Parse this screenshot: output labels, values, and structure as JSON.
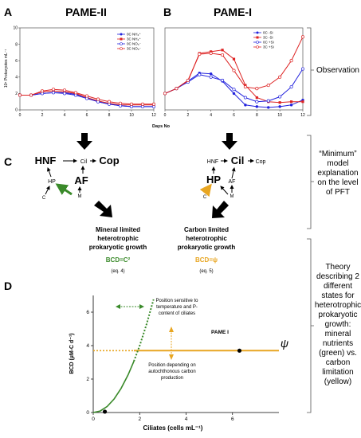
{
  "panels": {
    "A": {
      "letter": "A",
      "title": "PAME-II",
      "ylabel": "10⁶ Prokaryotes mL⁻¹",
      "yticks": [
        "0",
        "2",
        "4",
        "6",
        "8",
        "10"
      ],
      "xticks": [
        "0",
        "2",
        "4",
        "6",
        "8",
        "10",
        "12"
      ],
      "legend": [
        "0C NH₄⁺",
        "3C NH₄⁺",
        "0C NO₃⁻",
        "3C NO₃⁻"
      ]
    },
    "B": {
      "letter": "B",
      "title": "PAME-I",
      "xticks": [
        "0",
        "2",
        "4",
        "6",
        "8",
        "10",
        "12"
      ],
      "legend": [
        "0C -Si",
        "3C -Si",
        "0C +Si",
        "3C +Si"
      ]
    },
    "xlabel_shared": "Days No",
    "C": {
      "letter": "C",
      "left": {
        "HNF": "HNF",
        "Cop": "Cop",
        "Cil": "Cil",
        "AF": "AF",
        "HP": "HP",
        "C": "C",
        "M": "M"
      },
      "right": {
        "HNF": "HNF",
        "Cil": "Cil",
        "Cop": "Cop",
        "HP": "HP",
        "AF": "AF",
        "C": "C",
        "M": "M"
      },
      "mineral": {
        "line1": "Mineral limited",
        "line2": "heterotrophic",
        "line3": "prokaryotic growth",
        "bcd": "BCD=C²",
        "eq": "(eq. 4)"
      },
      "carbon": {
        "line1": "Carbon limited",
        "line2": "heterotrophic",
        "line3": "prokaryotic growth",
        "bcd": "BCD=ψ",
        "eq": "(eq. 5)"
      }
    },
    "D": {
      "letter": "D",
      "ylabel": "BCD (µM-C d⁻¹)",
      "xlabel": "Ciliates (cells mL⁻¹)",
      "yticks": [
        "0",
        "2",
        "4",
        "6"
      ],
      "xticks": [
        "0",
        "2",
        "4",
        "6"
      ],
      "note_top": [
        "Position sensitive to",
        "temperature and P-",
        "content of ciliates"
      ],
      "note_bottom": [
        "Position depending on",
        "autochthonous carbon",
        "production"
      ],
      "pame_label": "PAME I",
      "psi_label": "ψ"
    }
  },
  "side": {
    "observation": "Observation",
    "minimum": [
      "“Minimum”",
      "model",
      "explanation",
      "on the level",
      "of PFT"
    ],
    "theory": [
      "Theory",
      "describing 2",
      "different",
      "states for",
      "heterotrophic",
      "prokaryotic",
      "growth:",
      "mineral",
      "nutrients",
      "(green) vs.",
      "carbon",
      "limitation",
      "(yellow)"
    ]
  },
  "chart_data": [
    {
      "type": "line",
      "title": "PAME-II",
      "xlabel": "Days No",
      "ylabel": "10⁶ Prokaryotes mL⁻¹",
      "xlim": [
        0,
        12
      ],
      "ylim": [
        0,
        10
      ],
      "series": [
        {
          "name": "0C NH₄⁺",
          "color": "#2222dd",
          "marker": "filled-circle",
          "x": [
            0,
            1,
            2,
            3,
            4,
            5,
            6,
            7,
            8,
            9,
            10,
            11,
            12
          ],
          "y": [
            1.8,
            1.8,
            2.0,
            2.1,
            2.1,
            1.9,
            1.5,
            1.0,
            0.7,
            0.5,
            0.4,
            0.4,
            0.4
          ]
        },
        {
          "name": "3C NH₄⁺",
          "color": "#dd2222",
          "marker": "filled-square",
          "x": [
            0,
            1,
            2,
            3,
            4,
            5,
            6,
            7,
            8,
            9,
            10,
            11,
            12
          ],
          "y": [
            1.8,
            1.8,
            2.2,
            2.3,
            2.2,
            2.0,
            1.5,
            1.1,
            0.8,
            0.6,
            0.6,
            0.6,
            0.6
          ]
        },
        {
          "name": "0C NO₃⁻",
          "color": "#2222dd",
          "marker": "open-circle",
          "x": [
            0,
            1,
            2,
            3,
            4,
            5,
            6,
            7,
            8,
            9,
            10,
            11,
            12
          ],
          "y": [
            1.8,
            1.8,
            2.0,
            2.1,
            2.0,
            1.8,
            1.4,
            1.0,
            0.7,
            0.5,
            0.4,
            0.4,
            0.4
          ]
        },
        {
          "name": "3C NO₃⁻",
          "color": "#dd2222",
          "marker": "open-circle",
          "x": [
            0,
            1,
            2,
            3,
            4,
            5,
            6,
            7,
            8,
            9,
            10,
            11,
            12
          ],
          "y": [
            1.8,
            1.8,
            2.3,
            2.5,
            2.4,
            2.1,
            1.7,
            1.3,
            1.0,
            0.8,
            0.7,
            0.7,
            0.7
          ]
        }
      ]
    },
    {
      "type": "line",
      "title": "PAME-I",
      "xlabel": "Days No",
      "xlim": [
        0,
        12
      ],
      "ylim": [
        0,
        10
      ],
      "series": [
        {
          "name": "0C -Si",
          "color": "#2222dd",
          "marker": "filled-circle",
          "x": [
            0,
            1,
            2,
            3,
            4,
            5,
            6,
            7,
            8,
            9,
            10,
            11,
            12
          ],
          "y": [
            2.0,
            2.6,
            3.5,
            4.5,
            4.4,
            3.5,
            2.0,
            0.6,
            0.4,
            0.3,
            0.4,
            0.6,
            1.2
          ]
        },
        {
          "name": "3C -Si",
          "color": "#dd2222",
          "marker": "filled-square",
          "x": [
            0,
            1,
            2,
            3,
            4,
            5,
            6,
            7,
            8,
            9,
            10,
            11,
            12
          ],
          "y": [
            2.0,
            2.6,
            3.5,
            6.9,
            7.1,
            7.3,
            6.2,
            3.0,
            1.5,
            1.0,
            0.9,
            1.0,
            1.0
          ]
        },
        {
          "name": "0C +Si",
          "color": "#2222dd",
          "marker": "open-circle",
          "x": [
            0,
            1,
            2,
            3,
            4,
            5,
            6,
            7,
            8,
            9,
            10,
            11,
            12
          ],
          "y": [
            2.0,
            2.6,
            3.4,
            4.3,
            4.0,
            3.6,
            2.5,
            1.5,
            1.0,
            1.1,
            1.6,
            2.8,
            5.0
          ]
        },
        {
          "name": "3C +Si",
          "color": "#dd2222",
          "marker": "open-circle",
          "x": [
            0,
            1,
            2,
            3,
            4,
            5,
            6,
            7,
            8,
            9,
            10,
            11,
            12
          ],
          "y": [
            2.0,
            2.6,
            3.6,
            6.8,
            6.9,
            6.7,
            4.8,
            2.8,
            2.6,
            3.0,
            4.0,
            6.0,
            8.9
          ]
        }
      ]
    },
    {
      "type": "line",
      "xlabel": "Ciliates (cells mL⁻¹)",
      "ylabel": "BCD (µM-C d⁻¹)",
      "xlim": [
        0,
        8
      ],
      "ylim": [
        0,
        7
      ],
      "series": [
        {
          "name": "BCD=C²",
          "color": "#3a8a2a",
          "style": "solid-then-dotted",
          "x": [
            0,
            0.3,
            0.6,
            0.9,
            1.2,
            1.5,
            1.75,
            2.0,
            2.3,
            2.6
          ],
          "y": [
            0,
            0.09,
            0.36,
            0.81,
            1.44,
            2.25,
            3.06,
            4.0,
            5.29,
            6.76
          ]
        },
        {
          "name": "ψ",
          "color": "#e8a622",
          "style": "dotted-then-solid",
          "x": [
            0,
            1.75,
            8
          ],
          "y": [
            3.7,
            3.7,
            3.7
          ]
        }
      ],
      "points": [
        {
          "label": "",
          "x": 0.5,
          "y": 0.05
        },
        {
          "label": "PAME I",
          "x": 6.3,
          "y": 3.7
        }
      ]
    }
  ]
}
